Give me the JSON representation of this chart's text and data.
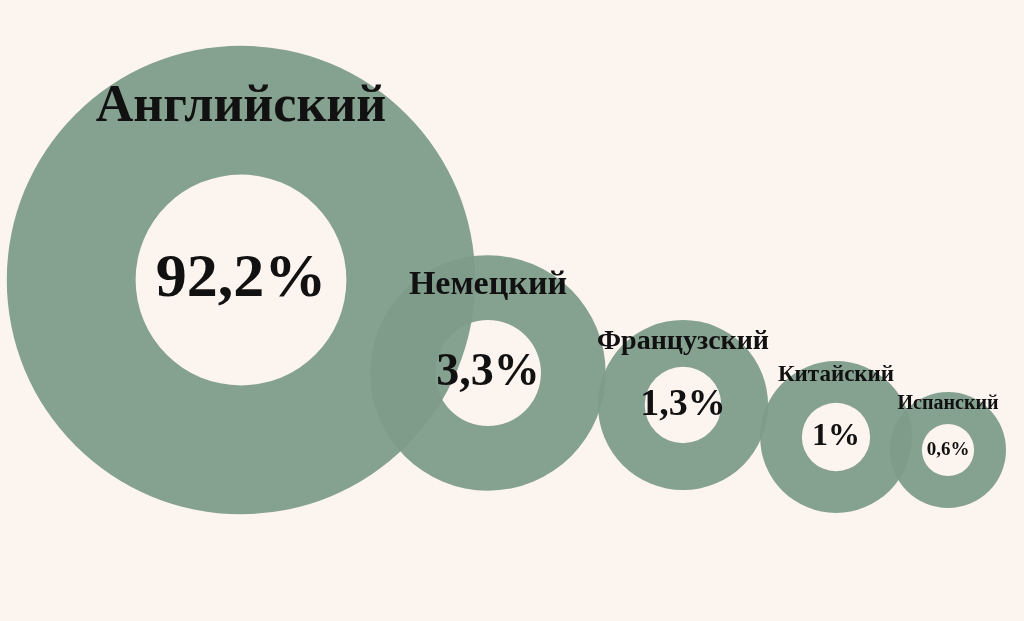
{
  "chart_data": {
    "type": "other",
    "categories": [
      "Английский",
      "Немецкий",
      "Французский",
      "Китайский",
      "Испанский"
    ],
    "values": [
      92.2,
      3.3,
      1.3,
      1,
      0.6
    ],
    "value_labels": [
      "92,2%",
      "3,3%",
      "1,3%",
      "1%",
      "0,6%"
    ],
    "color": "#7d9b89"
  }
}
